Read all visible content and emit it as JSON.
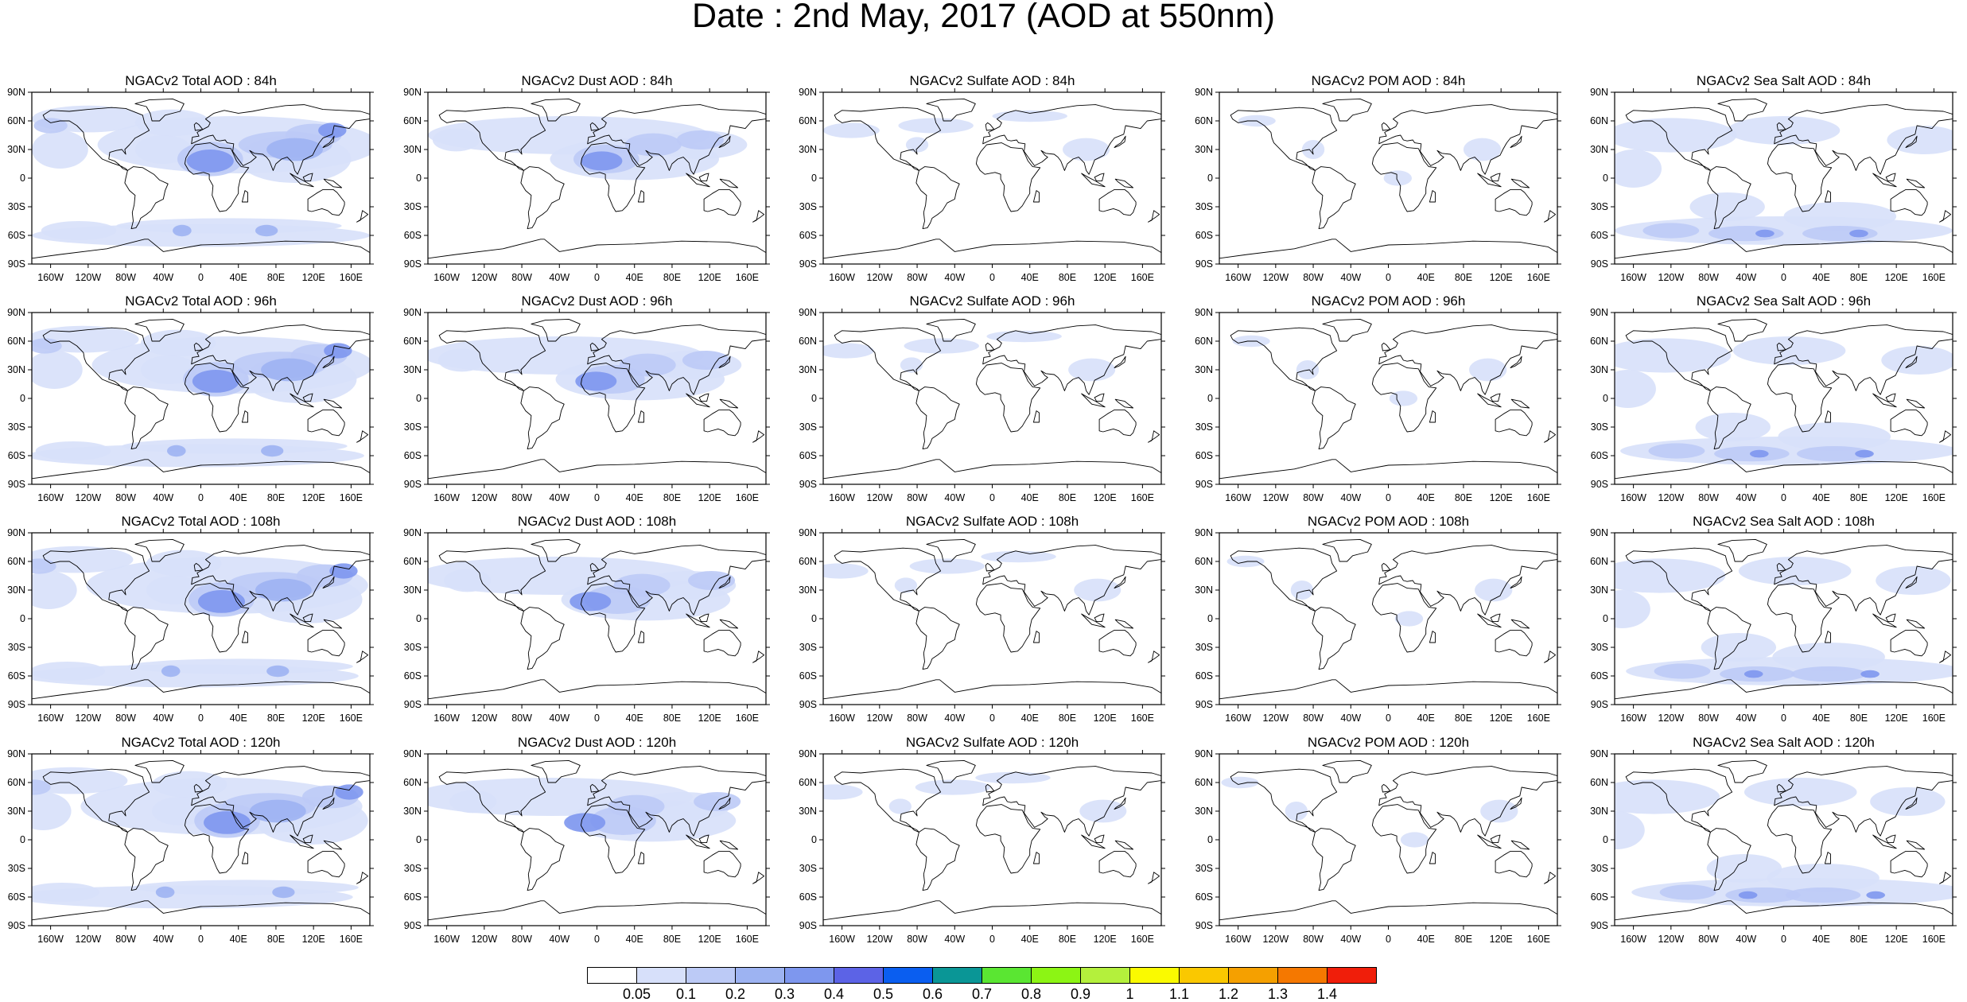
{
  "title": "Date : 2nd May, 2017 (AOD at 550nm)",
  "species": [
    {
      "key": "total",
      "prefix": "NGACv2 Total AOD"
    },
    {
      "key": "dust",
      "prefix": "NGACv2 Dust AOD"
    },
    {
      "key": "sulfate",
      "prefix": "NGACv2 Sulfate AOD"
    },
    {
      "key": "pom",
      "prefix": "NGACv2 POM AOD"
    },
    {
      "key": "seasalt",
      "prefix": "NGACv2 Sea Salt AOD"
    }
  ],
  "rows": [
    {
      "titles": [
        "NGACv2 Total AOD : 84h",
        "NGACv2 Dust AOD : 84h",
        "NGACv2 Sulfate AOD : 84h",
        "NGACv2 POM AOD : 84h",
        "NGACv2 Sea Salt AOD : 84h"
      ]
    },
    {
      "titles": [
        "NGACv2 Total AOD : 96h",
        "NGACv2 Dust AOD : 96h",
        "NGACv2 Sulfate AOD : 96h",
        "NGACv2 POM AOD : 96h",
        "NGACv2 Sea Salt AOD : 96h"
      ]
    },
    {
      "titles": [
        "NGACv2 Total AOD : 108h",
        "NGACv2 Dust AOD : 108h",
        "NGACv2 Sulfate AOD : 108h",
        "NGACv2 POM AOD : 108h",
        "NGACv2 Sea Salt AOD : 108h"
      ]
    },
    {
      "titles": [
        "NGACv2 Total AOD : 120h",
        "NGACv2 Dust AOD : 120h",
        "NGACv2 Sulfate AOD : 120h",
        "NGACv2 POM AOD : 120h",
        "NGACv2 Sea Salt  AOD : 120h"
      ]
    }
  ],
  "lat_ticks": [
    "90N",
    "60N",
    "30N",
    "0",
    "30S",
    "60S",
    "90S"
  ],
  "lon_ticks": [
    "160W",
    "120W",
    "80W",
    "40W",
    "0",
    "40E",
    "80E",
    "120E",
    "160E"
  ],
  "lon_tick_values": [
    -160,
    -120,
    -80,
    -40,
    0,
    40,
    80,
    120,
    160
  ],
  "lat_tick_values": [
    90,
    60,
    30,
    0,
    -30,
    -60,
    -90
  ],
  "map_extent": {
    "lon": [
      -180,
      180
    ],
    "lat": [
      -90,
      90
    ]
  },
  "colorbar": {
    "labels": [
      "0.05",
      "0.1",
      "0.2",
      "0.3",
      "0.4",
      "0.5",
      "0.6",
      "0.7",
      "0.8",
      "0.9",
      "1",
      "1.1",
      "1.2",
      "1.3",
      "1.4"
    ],
    "colors": [
      "#ffffff",
      "#d7e0fa",
      "#bccaf6",
      "#9db3f2",
      "#7e97ee",
      "#5c63e6",
      "#0a5ef0",
      "#0a9696",
      "#5ae632",
      "#8cf514",
      "#b4f03c",
      "#fafa00",
      "#fac800",
      "#f5a000",
      "#f57800",
      "#f01e0a"
    ]
  },
  "colors": {
    "land_outline": "#000000",
    "light_aod": "#c8d4f8",
    "mid_aod": "#8ea4f0",
    "high_aod": "#5c63e6",
    "very_high_aod": "#a8f030"
  }
}
